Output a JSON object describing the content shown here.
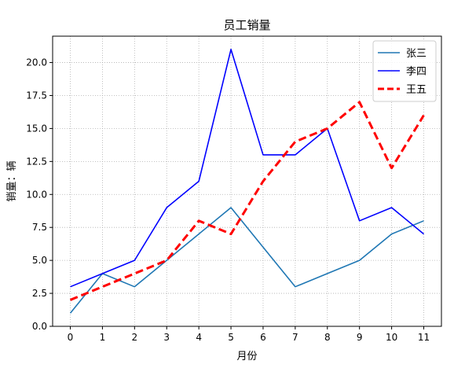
{
  "chart_data": {
    "type": "line",
    "title": "员工销量",
    "xlabel": "月份",
    "ylabel": "销量：辆",
    "x": [
      0,
      1,
      2,
      3,
      4,
      5,
      6,
      7,
      8,
      9,
      10,
      11
    ],
    "xlim": [
      -0.55,
      11.55
    ],
    "ylim": [
      0,
      22
    ],
    "yticks": [
      0.0,
      2.5,
      5.0,
      7.5,
      10.0,
      12.5,
      15.0,
      17.5,
      20.0
    ],
    "ytick_labels": [
      "0.0",
      "2.5",
      "5.0",
      "7.5",
      "10.0",
      "12.5",
      "15.0",
      "17.5",
      "20.0"
    ],
    "xtick_labels": [
      "0",
      "1",
      "2",
      "3",
      "4",
      "5",
      "6",
      "7",
      "8",
      "9",
      "10",
      "11"
    ],
    "grid": true,
    "legend_position": "top-right",
    "series": [
      {
        "name": "张三",
        "color": "#1f77b4",
        "style": "solid",
        "values": [
          1,
          4,
          3,
          5,
          7,
          9,
          6,
          3,
          4,
          5,
          7,
          8
        ]
      },
      {
        "name": "李四",
        "color": "#0000ff",
        "style": "solid",
        "values": [
          3,
          4,
          5,
          9,
          11,
          21,
          13,
          13,
          15,
          8,
          9,
          7
        ]
      },
      {
        "name": "王五",
        "color": "#ff0000",
        "style": "dashed",
        "values": [
          2,
          3,
          4,
          5,
          8,
          7,
          11,
          14,
          15,
          17,
          12,
          16
        ]
      }
    ]
  }
}
